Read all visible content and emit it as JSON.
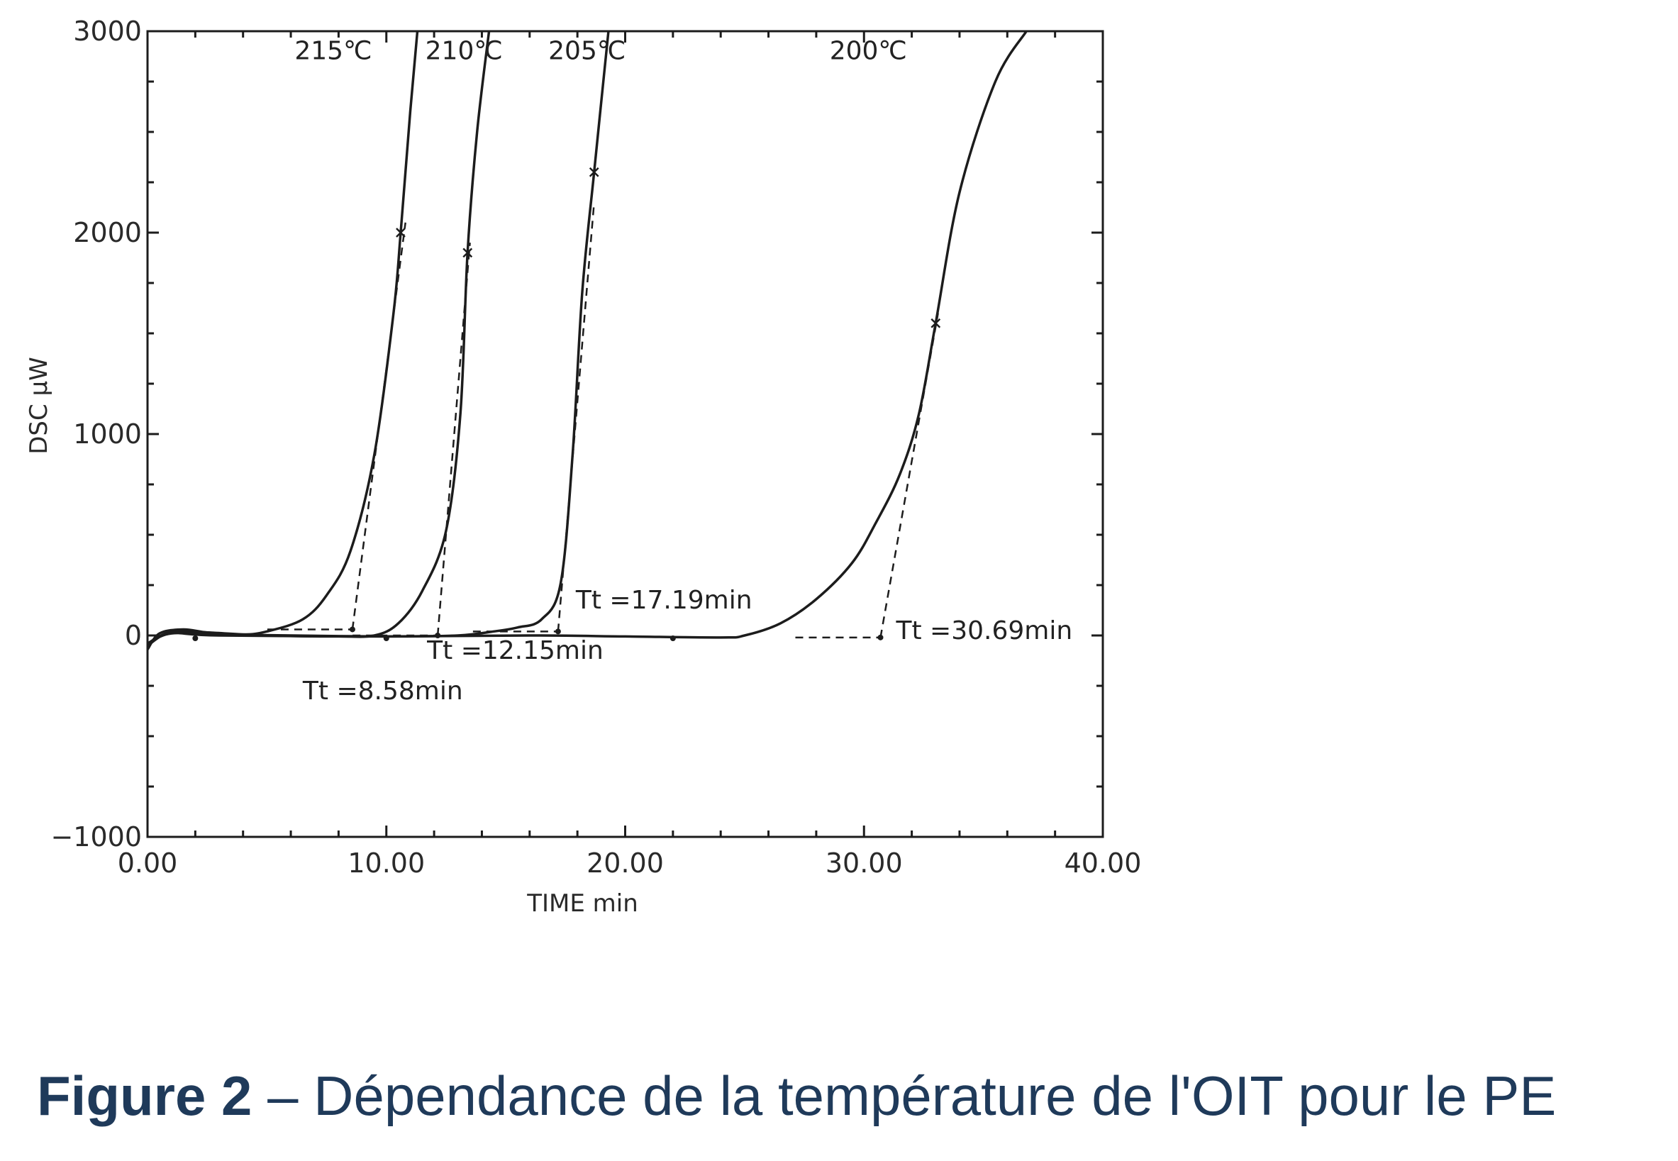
{
  "caption": {
    "label": "Figure 2",
    "text": "– Dépendance de la température de l'OIT pour le PE"
  },
  "colors": {
    "ink": "#1c1c1c",
    "caption": "#1f3a5a"
  },
  "chart_data": {
    "type": "line",
    "xlabel": "TIME  min",
    "ylabel": "DSC  μW",
    "xlim": [
      0,
      40
    ],
    "ylim": [
      -1000,
      3000
    ],
    "x_ticks": [
      "0.00",
      "10.00",
      "20.00",
      "30.00",
      "40.00"
    ],
    "y_ticks": [
      "3000",
      "2000",
      "1000",
      "0",
      "−1000"
    ],
    "x_tick_values": [
      0,
      10,
      20,
      30,
      40
    ],
    "y_tick_values": [
      3000,
      2000,
      1000,
      0,
      -1000
    ],
    "grid": false,
    "series": [
      {
        "name": "215℃",
        "points": [
          [
            0,
            -70
          ],
          [
            0.5,
            10
          ],
          [
            1.5,
            30
          ],
          [
            2.5,
            15
          ],
          [
            4,
            5
          ],
          [
            5,
            20
          ],
          [
            6.5,
            80
          ],
          [
            7.5,
            200
          ],
          [
            8.5,
            420
          ],
          [
            9.5,
            900
          ],
          [
            10.3,
            1600
          ],
          [
            10.6,
            2000
          ],
          [
            11,
            2600
          ],
          [
            11.3,
            3000
          ]
        ],
        "onset": 8.58,
        "onset_label": "Tt =8.58min",
        "marker_x": 10.6,
        "tangent": [
          [
            8.58,
            30
          ],
          [
            10.8,
            2050
          ]
        ]
      },
      {
        "name": "210℃",
        "points": [
          [
            0,
            -50
          ],
          [
            1,
            20
          ],
          [
            2.5,
            15
          ],
          [
            5,
            0
          ],
          [
            8,
            -5
          ],
          [
            9.5,
            0
          ],
          [
            10.5,
            60
          ],
          [
            11.5,
            220
          ],
          [
            12.5,
            520
          ],
          [
            13.1,
            1100
          ],
          [
            13.4,
            1900
          ],
          [
            13.8,
            2500
          ],
          [
            14.3,
            3000
          ]
        ],
        "onset": 12.15,
        "onset_label": "Tt =12.15min",
        "marker_x": 13.4,
        "tangent": [
          [
            12.15,
            0
          ],
          [
            13.5,
            1950
          ]
        ]
      },
      {
        "name": "205℃",
        "points": [
          [
            0,
            -40
          ],
          [
            1,
            15
          ],
          [
            3,
            5
          ],
          [
            6,
            0
          ],
          [
            10,
            -5
          ],
          [
            13,
            0
          ],
          [
            14.5,
            20
          ],
          [
            15.5,
            40
          ],
          [
            16.5,
            80
          ],
          [
            17.3,
            260
          ],
          [
            17.8,
            900
          ],
          [
            18.2,
            1700
          ],
          [
            18.7,
            2300
          ],
          [
            19.3,
            3000
          ]
        ],
        "onset": 17.19,
        "onset_label": "Tt =17.19min",
        "marker_x": 18.7,
        "tangent": [
          [
            17.19,
            20
          ],
          [
            18.7,
            2150
          ]
        ]
      },
      {
        "name": "200℃",
        "points": [
          [
            0,
            -40
          ],
          [
            1,
            10
          ],
          [
            3,
            0
          ],
          [
            10,
            -5
          ],
          [
            16,
            0
          ],
          [
            20,
            -5
          ],
          [
            24,
            -10
          ],
          [
            25,
            0
          ],
          [
            26.5,
            60
          ],
          [
            28,
            180
          ],
          [
            29.5,
            360
          ],
          [
            30.5,
            560
          ],
          [
            31.5,
            800
          ],
          [
            32.3,
            1100
          ],
          [
            33,
            1550
          ],
          [
            34,
            2200
          ],
          [
            35.5,
            2750
          ],
          [
            36.8,
            3000
          ]
        ],
        "onset": 30.69,
        "onset_label": "Tt =30.69min",
        "marker_x": 33,
        "tangent": [
          [
            30.69,
            -10
          ],
          [
            33.1,
            1600
          ]
        ]
      }
    ]
  }
}
